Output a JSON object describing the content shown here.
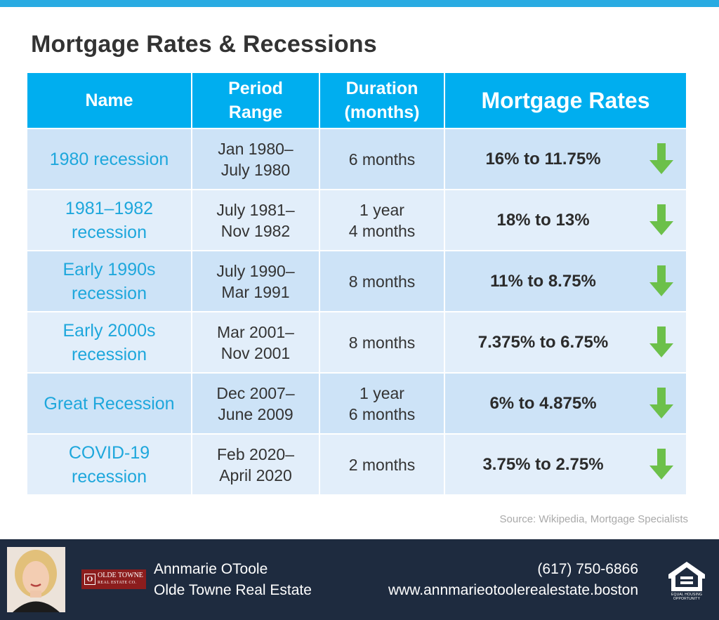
{
  "page": {
    "title": "Mortgage Rates & Recessions",
    "source": "Source: Wikipedia, Mortgage Specialists"
  },
  "colors": {
    "accent": "#00aeef",
    "row_dark": "#cde3f7",
    "row_light": "#e2eefa",
    "name_text": "#1ea7dc",
    "arrow_green": "#6cc04a",
    "footer_bg": "#1e2b3f"
  },
  "table": {
    "headers": {
      "name": "Name",
      "period_line1": "Period",
      "period_line2": "Range",
      "duration_line1": "Duration",
      "duration_line2": "(months)",
      "rates": "Mortgage Rates"
    },
    "rows": [
      {
        "name1": "1980 recession",
        "name2": "",
        "period1": "Jan 1980–",
        "period2": "July 1980",
        "duration1": "6 months",
        "duration2": "",
        "rates": "16% to 11.75%",
        "trend_icon": "down-arrow-icon"
      },
      {
        "name1": "1981–1982",
        "name2": "recession",
        "period1": "July 1981–",
        "period2": "Nov 1982",
        "duration1": "1 year",
        "duration2": "4 months",
        "rates": "18% to 13%",
        "trend_icon": "down-arrow-icon"
      },
      {
        "name1": "Early 1990s",
        "name2": "recession",
        "period1": "July 1990–",
        "period2": "Mar 1991",
        "duration1": "8 months",
        "duration2": "",
        "rates": "11% to 8.75%",
        "trend_icon": "down-arrow-icon"
      },
      {
        "name1": "Early 2000s",
        "name2": "recession",
        "period1": "Mar 2001–",
        "period2": "Nov 2001",
        "duration1": "8 months",
        "duration2": "",
        "rates": "7.375% to 6.75%",
        "trend_icon": "down-arrow-icon"
      },
      {
        "name1": "Great Recession",
        "name2": "",
        "period1": "Dec 2007–",
        "period2": "June 2009",
        "duration1": "1 year",
        "duration2": "6 months",
        "rates": "6% to 4.875%",
        "trend_icon": "down-arrow-icon"
      },
      {
        "name1": "COVID-19",
        "name2": "recession",
        "period1": "Feb 2020–",
        "period2": "April 2020",
        "duration1": "2 months",
        "duration2": "",
        "rates": "3.75% to 2.75%",
        "trend_icon": "down-arrow-icon"
      }
    ]
  },
  "footer": {
    "agent_name": "Annmarie OToole",
    "agency": "Olde Towne Real Estate",
    "phone": "(617) 750-6866",
    "website": "www.annmarieotoolerealestate.boston",
    "logo_line1": "OLDE TOWNE",
    "logo_line2": "REAL ESTATE CO.",
    "logo_mark": "O",
    "eho_line1": "EQUAL HOUSING",
    "eho_line2": "OPPORTUNITY"
  }
}
